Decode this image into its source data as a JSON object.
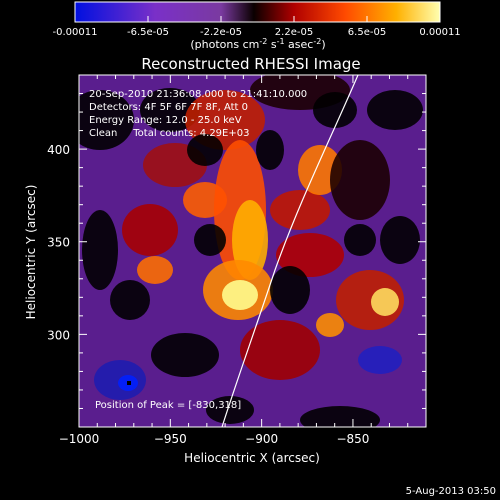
{
  "colorbar": {
    "ticks": [
      "-0.00011",
      "-6.5e-05",
      "-2.2e-05",
      "2.2e-05",
      "6.5e-05",
      "0.00011"
    ],
    "units_main": "(photons cm",
    "units_exp1": "-2",
    "units_mid": " s",
    "units_exp2": "-1",
    "units_end": " asec",
    "units_exp3": "-2",
    "units_close": ")"
  },
  "chart_data": {
    "type": "heatmap",
    "title": "Reconstructed RHESSI Image",
    "xlabel": "Heliocentric X (arcsec)",
    "ylabel": "Heliocentric Y (arcsec)",
    "xlim": [
      -1000,
      -810
    ],
    "ylim": [
      250,
      440
    ],
    "x_ticks": [
      -1000,
      -950,
      -900,
      -850
    ],
    "x_tick_labels": [
      "−1000",
      "−950",
      "−900",
      "−850"
    ],
    "y_ticks": [
      300,
      350,
      400
    ],
    "y_tick_labels": [
      "300",
      "350",
      "400"
    ],
    "color_range": [
      -0.00011,
      0.00011
    ],
    "peak": [
      -830,
      318
    ],
    "annotations": [
      "20-Sep-2010 21:36:08.000 to 21:41:10.000",
      "Detectors: 4F 5F 6F 7F 8F, Att 0",
      "Energy Range: 12.0 - 25.0 keV",
      "Clean     Total counts: 4.29E+03"
    ],
    "peak_label": "Position of Peak = [-830,318]"
  },
  "footer": {
    "timestamp": "5-Aug-2013 03:50"
  }
}
